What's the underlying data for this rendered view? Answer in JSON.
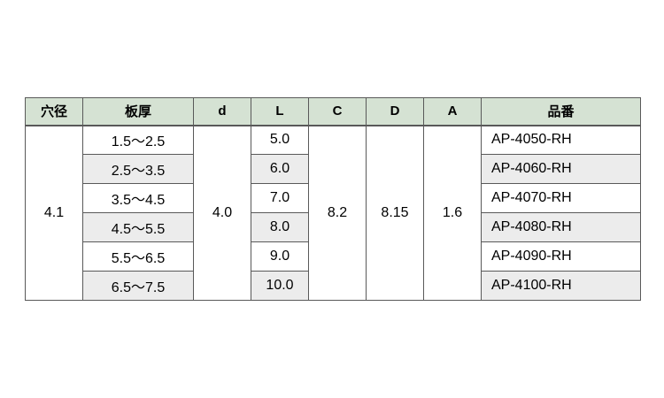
{
  "table": {
    "headers": [
      "穴径",
      "板厚",
      "d",
      "L",
      "C",
      "D",
      "A",
      "品番"
    ],
    "merged": {
      "hole_diameter": "4.1",
      "d_value": "4.0",
      "c_value": "8.2",
      "d_dim_value": "8.15",
      "a_value": "1.6"
    },
    "rows": [
      {
        "thickness": "1.5〜2.5",
        "length": "5.0",
        "part_no": "AP-4050-RH"
      },
      {
        "thickness": "2.5〜3.5",
        "length": "6.0",
        "part_no": "AP-4060-RH"
      },
      {
        "thickness": "3.5〜4.5",
        "length": "7.0",
        "part_no": "AP-4070-RH"
      },
      {
        "thickness": "4.5〜5.5",
        "length": "8.0",
        "part_no": "AP-4080-RH"
      },
      {
        "thickness": "5.5〜6.5",
        "length": "9.0",
        "part_no": "AP-4090-RH"
      },
      {
        "thickness": "6.5〜7.5",
        "length": "10.0",
        "part_no": "AP-4100-RH"
      }
    ],
    "colors": {
      "header_bg": "#d5e2d3",
      "alt_row_bg": "#ececec",
      "border": "#595959",
      "text": "#000000"
    }
  }
}
